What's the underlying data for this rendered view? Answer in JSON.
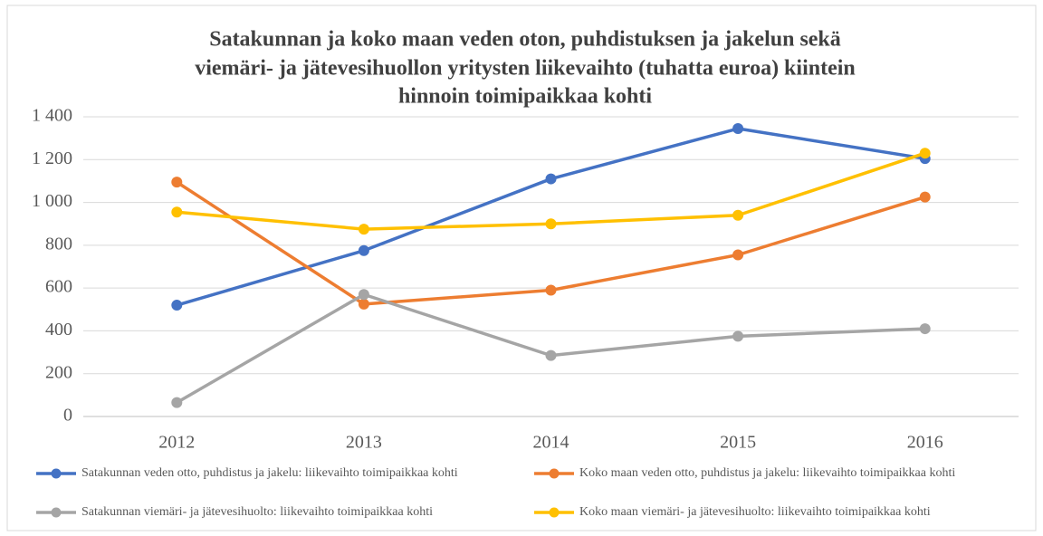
{
  "chart_data": {
    "type": "line",
    "title": [
      "Satakunnan ja koko maan veden oton, puhdistuksen ja jakelun sekä",
      "viemäri- ja jätevesihuollon yritysten liikevaihto (tuhatta euroa) kiintein",
      "hinnoin toimipaikkaa kohti"
    ],
    "categories": [
      "2012",
      "2013",
      "2014",
      "2015",
      "2016"
    ],
    "series": [
      {
        "name": "Satakunnan veden otto, puhdistus ja jakelu: liikevaihto toimipaikkaa kohti",
        "color": "#4472c4",
        "values": [
          520,
          775,
          1110,
          1345,
          1205
        ]
      },
      {
        "name": "Koko maan veden otto, puhdistus ja jakelu: liikevaihto toimipaikkaa kohti",
        "color": "#ed7d31",
        "values": [
          1095,
          525,
          590,
          755,
          1025
        ]
      },
      {
        "name": "Satakunnan viemäri- ja jätevesihuolto: liikevaihto toimipaikkaa kohti",
        "color": "#a5a5a5",
        "values": [
          65,
          570,
          285,
          375,
          410
        ]
      },
      {
        "name": "Koko maan viemäri- ja jätevesihuolto: liikevaihto toimipaikkaa kohti",
        "color": "#ffc000",
        "values": [
          955,
          875,
          900,
          940,
          1230
        ]
      }
    ],
    "ylim": [
      0,
      1400
    ],
    "yticks": [
      0,
      200,
      400,
      600,
      800,
      {
        "value": 1000,
        "label": "1 000"
      },
      {
        "value": 1200,
        "label": "1 200"
      },
      {
        "value": 1400,
        "label": "1 400"
      }
    ],
    "grid": true,
    "legend": "bottom"
  }
}
